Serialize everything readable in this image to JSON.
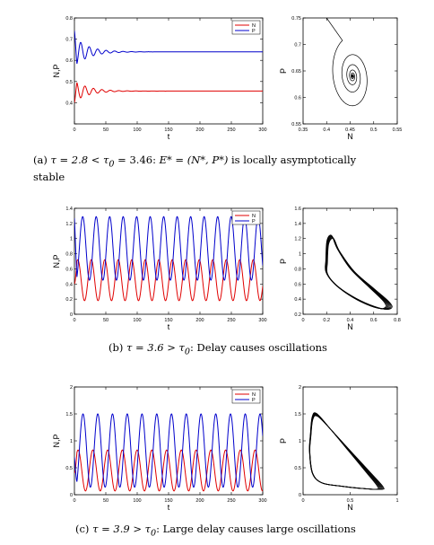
{
  "chart_data": [
    {
      "id": "a-time",
      "type": "line",
      "xlabel": "t",
      "ylabel": "N,P",
      "xlim": [
        0,
        300
      ],
      "ylim": [
        0.3,
        0.8
      ],
      "xticks": [
        0,
        50,
        100,
        150,
        200,
        250,
        300
      ],
      "xtick_labels": [
        "0",
        "50",
        "100",
        "150",
        "200",
        "250",
        "300"
      ],
      "yticks": [
        0.3,
        0.4,
        0.5,
        0.6,
        0.7,
        0.8
      ],
      "ytick_labels": [
        "",
        "0.4",
        "0.5",
        "0.6",
        "0.7",
        "0.8"
      ],
      "legend": "top-right",
      "series": [
        {
          "name": "N",
          "color": "#e00000",
          "start": 0.4,
          "mean": 0.455,
          "amp": 0.05,
          "period": 13.5,
          "decay": 0.045,
          "phase": 0.0
        },
        {
          "name": "P",
          "color": "#0000cc",
          "start": 0.74,
          "mean": 0.64,
          "amp": 0.07,
          "period": 13.5,
          "decay": 0.045,
          "phase": 3.14
        }
      ]
    },
    {
      "id": "a-phase",
      "type": "line",
      "xlabel": "N",
      "ylabel": "P",
      "xlim": [
        0.35,
        0.55
      ],
      "ylim": [
        0.55,
        0.75
      ],
      "xticks": [
        0.35,
        0.4,
        0.45,
        0.5,
        0.55
      ],
      "xtick_labels": [
        "0.35",
        "0.4",
        "0.45",
        "0.5",
        "0.55"
      ],
      "yticks": [
        0.55,
        0.6,
        0.65,
        0.7,
        0.75
      ],
      "ytick_labels": [
        "0.55",
        "0.6",
        "0.65",
        "0.7",
        "0.75"
      ],
      "orbit": {
        "cx": 0.455,
        "cy": 0.64,
        "rx": 0.05,
        "ry": 0.075,
        "tilt": -0.5,
        "decay": 0.045,
        "turns": 9,
        "start": [
          0.4,
          0.75
        ]
      }
    },
    {
      "id": "b-time",
      "type": "line",
      "xlabel": "t",
      "ylabel": "N,P",
      "xlim": [
        0,
        300
      ],
      "ylim": [
        0,
        1.4
      ],
      "xticks": [
        0,
        50,
        100,
        150,
        200,
        250,
        300
      ],
      "xtick_labels": [
        "0",
        "50",
        "100",
        "150",
        "200",
        "250",
        "300"
      ],
      "yticks": [
        0,
        0.2,
        0.4,
        0.6,
        0.8,
        1,
        1.2,
        1.4
      ],
      "ytick_labels": [
        "0",
        "0.2",
        "0.4",
        "0.6",
        "0.8",
        "1",
        "1.2",
        "1.4"
      ],
      "legend": "top-right",
      "series": [
        {
          "name": "N",
          "color": "#e00000",
          "start": 0.4,
          "mean": 0.45,
          "amp": 0.27,
          "period": 21.5,
          "decay": 0,
          "phase": 0.0
        },
        {
          "name": "P",
          "color": "#0000cc",
          "start": 1.27,
          "mean": 0.87,
          "amp": 0.42,
          "period": 21.5,
          "decay": 0,
          "phase": 4.0
        }
      ]
    },
    {
      "id": "b-phase",
      "type": "line",
      "xlabel": "N",
      "ylabel": "P",
      "xlim": [
        0,
        0.8
      ],
      "ylim": [
        0.2,
        1.6
      ],
      "xticks": [
        0,
        0.2,
        0.4,
        0.6,
        0.8
      ],
      "xtick_labels": [
        "0",
        "0.2",
        "0.4",
        "0.6",
        "0.8"
      ],
      "yticks": [
        0.2,
        0.4,
        0.6,
        0.8,
        1,
        1.2,
        1.4,
        1.6
      ],
      "ytick_labels": [
        "0.2",
        "0.4",
        "0.6",
        "0.8",
        "1",
        "1.2",
        "1.4",
        "1.6"
      ],
      "cycle": [
        [
          0.2,
          0.9
        ],
        [
          0.21,
          1.15
        ],
        [
          0.25,
          1.22
        ],
        [
          0.3,
          1.05
        ],
        [
          0.42,
          0.78
        ],
        [
          0.58,
          0.55
        ],
        [
          0.7,
          0.38
        ],
        [
          0.73,
          0.3
        ],
        [
          0.68,
          0.27
        ],
        [
          0.55,
          0.33
        ],
        [
          0.4,
          0.45
        ],
        [
          0.27,
          0.6
        ],
        [
          0.2,
          0.75
        ]
      ]
    },
    {
      "id": "c-time",
      "type": "line",
      "xlabel": "t",
      "ylabel": "N,P",
      "xlim": [
        0,
        300
      ],
      "ylim": [
        0,
        2
      ],
      "xticks": [
        0,
        50,
        100,
        150,
        200,
        250,
        300
      ],
      "xtick_labels": [
        "0",
        "50",
        "100",
        "150",
        "200",
        "250",
        "300"
      ],
      "yticks": [
        0,
        0.5,
        1,
        1.5,
        2
      ],
      "ytick_labels": [
        "0",
        "0.5",
        "1",
        "1.5",
        "2"
      ],
      "legend": "top-right",
      "series": [
        {
          "name": "N",
          "color": "#e00000",
          "start": 0.4,
          "mean": 0.45,
          "amp": 0.38,
          "period": 23.5,
          "decay": 0,
          "phase": 0.0
        },
        {
          "name": "P",
          "color": "#0000cc",
          "start": 0.7,
          "mean": 0.82,
          "amp": 0.68,
          "period": 23.5,
          "decay": 0,
          "phase": 4.2
        }
      ]
    },
    {
      "id": "c-phase",
      "type": "line",
      "xlabel": "N",
      "ylabel": "P",
      "xlim": [
        0,
        1
      ],
      "ylim": [
        0,
        2
      ],
      "xticks": [
        0,
        0.5,
        1
      ],
      "xtick_labels": [
        "0",
        "0.5",
        "1"
      ],
      "yticks": [
        0,
        0.5,
        1,
        1.5,
        2
      ],
      "ytick_labels": [
        "0",
        "0.5",
        "1",
        "1.5",
        "2"
      ],
      "cycle": [
        [
          0.08,
          1.1
        ],
        [
          0.1,
          1.42
        ],
        [
          0.15,
          1.48
        ],
        [
          0.3,
          1.2
        ],
        [
          0.5,
          0.8
        ],
        [
          0.7,
          0.4
        ],
        [
          0.82,
          0.15
        ],
        [
          0.8,
          0.1
        ],
        [
          0.6,
          0.12
        ],
        [
          0.4,
          0.16
        ],
        [
          0.2,
          0.22
        ],
        [
          0.1,
          0.4
        ],
        [
          0.07,
          0.8
        ]
      ]
    }
  ],
  "captions": {
    "a": {
      "lead": "(a) ",
      "tau_expr": "τ = 2.8 < τ",
      "tau_sub": "0",
      "tail": " = 3.46: ",
      "eq": "E* = (N*, P*)",
      "after": " is locally asymptotically",
      "line2": "stable"
    },
    "b": {
      "lead": "(b) ",
      "tau_expr": "τ = 3.6 > τ",
      "tau_sub": "0",
      "after": ": Delay causes oscillations"
    },
    "c": {
      "lead": "(c) ",
      "tau_expr": "τ = 3.9 > τ",
      "tau_sub": "0",
      "after": ": Large delay causes large oscillations"
    }
  }
}
